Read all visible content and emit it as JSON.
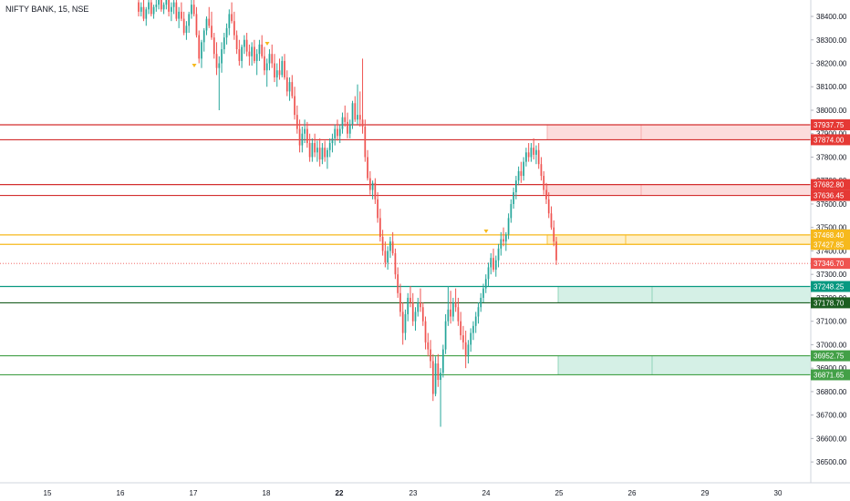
{
  "header": {
    "title": "NIFTY BANK, 15, NSE"
  },
  "colors": {
    "up": "#26a69a",
    "down": "#ef5350",
    "red_line": "#d32f2f",
    "orange_line": "#f6b91d",
    "teal_line": "#089981",
    "dark_green_line": "#1b5e20",
    "green_line": "#43a047",
    "red_zone": "#fcdcdc",
    "orange_zone": "#fff0c8",
    "green_zone": "#d5f0e6",
    "price_tag": "#ef5350"
  },
  "chart_data": {
    "type": "candlestick",
    "title": "NIFTY BANK, 15, NSE",
    "ylim": [
      36450,
      38470
    ],
    "y_ticks": [
      36500,
      36600,
      36700,
      36800,
      36900,
      37000,
      37100,
      37200,
      37300,
      37400,
      37500,
      37600,
      37700,
      37800,
      37900,
      38000,
      38100,
      38200,
      38300,
      38400
    ],
    "y_tick_labels": [
      "36500.00",
      "36600.00",
      "36700.00",
      "36800.00",
      "36900.00",
      "37000.00",
      "37100.00",
      "37200.00",
      "37300.00",
      "37400.00",
      "37500.00",
      "37600.00",
      "37700.00",
      "37800.00",
      "37900.00",
      "38000.00",
      "38100.00",
      "38200.00",
      "38300.00",
      "38400.00"
    ],
    "x_ticks": [
      "15",
      "16",
      "17",
      "18",
      "22",
      "23",
      "24",
      "25",
      "26",
      "29",
      "30"
    ],
    "horizontal_levels": [
      {
        "value": 37937.75,
        "label": "37937.75",
        "color": "red"
      },
      {
        "value": 37874.0,
        "label": "37874.00",
        "color": "red"
      },
      {
        "value": 37682.8,
        "label": "37682.80",
        "color": "red"
      },
      {
        "value": 37636.45,
        "label": "37636.45",
        "color": "red"
      },
      {
        "value": 37468.4,
        "label": "37468.40",
        "color": "orange"
      },
      {
        "value": 37427.85,
        "label": "37427.85",
        "color": "orange"
      },
      {
        "value": 37248.25,
        "label": "37248.25",
        "color": "teal"
      },
      {
        "value": 37178.7,
        "label": "37178.70",
        "color": "dark_green"
      },
      {
        "value": 36952.75,
        "label": "36952.75",
        "color": "green"
      },
      {
        "value": 36871.65,
        "label": "36871.65",
        "color": "green"
      }
    ],
    "zones": [
      {
        "top": 37937.75,
        "bottom": 37874.0,
        "color": "red",
        "start_day": "24-end"
      },
      {
        "top": 37682.8,
        "bottom": 37636.45,
        "color": "red",
        "start_day": "24-end"
      },
      {
        "top": 37468.4,
        "bottom": 37427.85,
        "color": "orange",
        "start_day": "24-end"
      },
      {
        "top": 37248.25,
        "bottom": 37178.7,
        "color": "green",
        "start_day": "25"
      },
      {
        "top": 36952.75,
        "bottom": 36871.65,
        "color": "green",
        "start_day": "25"
      }
    ],
    "last_price": {
      "value": 37346.7,
      "label": "37346.70"
    },
    "candles": [
      [
        38460,
        38480,
        38400,
        38420
      ],
      [
        38420,
        38460,
        38400,
        38440
      ],
      [
        38440,
        38470,
        38380,
        38390
      ],
      [
        38390,
        38440,
        38360,
        38430
      ],
      [
        38430,
        38480,
        38410,
        38460
      ],
      [
        38460,
        38480,
        38400,
        38410
      ],
      [
        38410,
        38450,
        38390,
        38440
      ],
      [
        38440,
        38470,
        38420,
        38450
      ],
      [
        38450,
        38480,
        38430,
        38470
      ],
      [
        38470,
        38480,
        38420,
        38430
      ],
      [
        38430,
        38460,
        38410,
        38450
      ],
      [
        38450,
        38480,
        38430,
        38470
      ],
      [
        38470,
        38480,
        38400,
        38420
      ],
      [
        38420,
        38460,
        38380,
        38440
      ],
      [
        38440,
        38470,
        38410,
        38460
      ],
      [
        38460,
        38480,
        38380,
        38390
      ],
      [
        38390,
        38440,
        38350,
        38420
      ],
      [
        38420,
        38460,
        38380,
        38390
      ],
      [
        38390,
        38420,
        38320,
        38330
      ],
      [
        38330,
        38380,
        38300,
        38360
      ],
      [
        38360,
        38420,
        38330,
        38410
      ],
      [
        38410,
        38470,
        38390,
        38450
      ],
      [
        38450,
        38480,
        38400,
        38410
      ],
      [
        38410,
        38440,
        38310,
        38320
      ],
      [
        38320,
        38340,
        38200,
        38220
      ],
      [
        38220,
        38300,
        38180,
        38290
      ],
      [
        38290,
        38350,
        38250,
        38340
      ],
      [
        38340,
        38400,
        38320,
        38390
      ],
      [
        38390,
        38440,
        38350,
        38360
      ],
      [
        38360,
        38420,
        38300,
        38310
      ],
      [
        38310,
        38330,
        38220,
        38240
      ],
      [
        38240,
        38290,
        38150,
        38180
      ],
      [
        38180,
        38230,
        38000,
        38200
      ],
      [
        38200,
        38290,
        38160,
        38260
      ],
      [
        38260,
        38330,
        38240,
        38310
      ],
      [
        38310,
        38370,
        38280,
        38350
      ],
      [
        38350,
        38430,
        38320,
        38410
      ],
      [
        38410,
        38460,
        38370,
        38380
      ],
      [
        38380,
        38420,
        38300,
        38320
      ],
      [
        38320,
        38340,
        38240,
        38260
      ],
      [
        38260,
        38300,
        38190,
        38210
      ],
      [
        38210,
        38280,
        38180,
        38270
      ],
      [
        38270,
        38320,
        38240,
        38300
      ],
      [
        38300,
        38330,
        38230,
        38250
      ],
      [
        38250,
        38280,
        38190,
        38230
      ],
      [
        38230,
        38290,
        38190,
        38270
      ],
      [
        38270,
        38300,
        38200,
        38210
      ],
      [
        38210,
        38260,
        38150,
        38240
      ],
      [
        38240,
        38300,
        38210,
        38280
      ],
      [
        38280,
        38320,
        38220,
        38230
      ],
      [
        38230,
        38270,
        38150,
        38170
      ],
      [
        38170,
        38220,
        38100,
        38200
      ],
      [
        38200,
        38260,
        38170,
        38240
      ],
      [
        38240,
        38280,
        38180,
        38200
      ],
      [
        38200,
        38240,
        38120,
        38140
      ],
      [
        38140,
        38200,
        38100,
        38170
      ],
      [
        38170,
        38220,
        38130,
        38150
      ],
      [
        38150,
        38230,
        38140,
        38210
      ],
      [
        38210,
        38240,
        38130,
        38140
      ],
      [
        38140,
        38170,
        38060,
        38080
      ],
      [
        38080,
        38140,
        38040,
        38120
      ],
      [
        38120,
        38150,
        38050,
        38060
      ],
      [
        38060,
        38100,
        37960,
        37980
      ],
      [
        37980,
        38020,
        37900,
        37920
      ],
      [
        37920,
        37960,
        37820,
        37850
      ],
      [
        37850,
        37930,
        37820,
        37900
      ],
      [
        37900,
        37960,
        37860,
        37920
      ],
      [
        37920,
        37950,
        37840,
        37860
      ],
      [
        37860,
        37900,
        37780,
        37800
      ],
      [
        37800,
        37880,
        37780,
        37860
      ],
      [
        37860,
        37900,
        37800,
        37820
      ],
      [
        37820,
        37870,
        37780,
        37840
      ],
      [
        37840,
        37880,
        37760,
        37790
      ],
      [
        37790,
        37860,
        37770,
        37840
      ],
      [
        37840,
        37870,
        37780,
        37800
      ],
      [
        37800,
        37840,
        37750,
        37830
      ],
      [
        37830,
        37880,
        37800,
        37860
      ],
      [
        37860,
        37900,
        37820,
        37880
      ],
      [
        37880,
        37940,
        37850,
        37920
      ],
      [
        37920,
        37960,
        37870,
        37890
      ],
      [
        37890,
        37940,
        37860,
        37920
      ],
      [
        37920,
        37990,
        37900,
        37970
      ],
      [
        37970,
        38020,
        37930,
        37950
      ],
      [
        37950,
        37990,
        37880,
        37900
      ],
      [
        37900,
        37960,
        37880,
        37940
      ],
      [
        37940,
        38040,
        37920,
        38030
      ],
      [
        38030,
        38060,
        37950,
        37960
      ],
      [
        37960,
        38110,
        37940,
        37980
      ],
      [
        37980,
        38080,
        37930,
        37960
      ],
      [
        37960,
        38220,
        37900,
        37930
      ],
      [
        37930,
        37960,
        37780,
        37800
      ],
      [
        37800,
        37830,
        37700,
        37710
      ],
      [
        37710,
        37740,
        37640,
        37660
      ],
      [
        37660,
        37700,
        37620,
        37690
      ],
      [
        37690,
        37710,
        37600,
        37620
      ],
      [
        37620,
        37650,
        37520,
        37540
      ],
      [
        37540,
        37580,
        37440,
        37460
      ],
      [
        37460,
        37490,
        37380,
        37400
      ],
      [
        37400,
        37440,
        37330,
        37350
      ],
      [
        37350,
        37420,
        37320,
        37400
      ],
      [
        37400,
        37460,
        37370,
        37440
      ],
      [
        37440,
        37480,
        37380,
        37390
      ],
      [
        37390,
        37410,
        37280,
        37300
      ],
      [
        37300,
        37330,
        37200,
        37220
      ],
      [
        37220,
        37260,
        37120,
        37140
      ],
      [
        37140,
        37180,
        37000,
        37050
      ],
      [
        37050,
        37150,
        37020,
        37130
      ],
      [
        37130,
        37220,
        37100,
        37200
      ],
      [
        37200,
        37250,
        37160,
        37180
      ],
      [
        37180,
        37220,
        37080,
        37100
      ],
      [
        37100,
        37160,
        37060,
        37140
      ],
      [
        37140,
        37200,
        37120,
        37180
      ],
      [
        37180,
        37240,
        37140,
        37160
      ],
      [
        37160,
        37180,
        37080,
        37100
      ],
      [
        37100,
        37120,
        36980,
        37010
      ],
      [
        37010,
        37050,
        36950,
        36980
      ],
      [
        36980,
        37020,
        36900,
        36930
      ],
      [
        36930,
        36960,
        36760,
        36790
      ],
      [
        36790,
        36950,
        36780,
        36920
      ],
      [
        36920,
        36960,
        36820,
        36850
      ],
      [
        36850,
        36900,
        36650,
        36880
      ],
      [
        36880,
        37000,
        36860,
        36980
      ],
      [
        36980,
        37130,
        36960,
        37100
      ],
      [
        37100,
        37250,
        37080,
        37150
      ],
      [
        37150,
        37230,
        37090,
        37120
      ],
      [
        37120,
        37200,
        37100,
        37180
      ],
      [
        37180,
        37240,
        37140,
        37160
      ],
      [
        37160,
        37200,
        37080,
        37100
      ],
      [
        37100,
        37140,
        37020,
        37040
      ],
      [
        37040,
        37080,
        36980,
        37010
      ],
      [
        37010,
        37060,
        36900,
        36950
      ],
      [
        36950,
        37020,
        36920,
        37000
      ],
      [
        37000,
        37070,
        36970,
        37050
      ],
      [
        37050,
        37100,
        37020,
        37080
      ],
      [
        37080,
        37140,
        37050,
        37120
      ],
      [
        37120,
        37180,
        37090,
        37160
      ],
      [
        37160,
        37220,
        37140,
        37200
      ],
      [
        37200,
        37260,
        37180,
        37240
      ],
      [
        37240,
        37300,
        37220,
        37280
      ],
      [
        37280,
        37350,
        37250,
        37330
      ],
      [
        37330,
        37390,
        37300,
        37370
      ],
      [
        37370,
        37410,
        37310,
        37320
      ],
      [
        37320,
        37380,
        37290,
        37360
      ],
      [
        37360,
        37430,
        37330,
        37410
      ],
      [
        37410,
        37480,
        37380,
        37450
      ],
      [
        37450,
        37500,
        37420,
        37440
      ],
      [
        37440,
        37480,
        37400,
        37470
      ],
      [
        37470,
        37560,
        37450,
        37540
      ],
      [
        37540,
        37620,
        37520,
        37600
      ],
      [
        37600,
        37670,
        37580,
        37650
      ],
      [
        37650,
        37720,
        37620,
        37700
      ],
      [
        37700,
        37760,
        37680,
        37740
      ],
      [
        37740,
        37780,
        37690,
        37720
      ],
      [
        37720,
        37800,
        37700,
        37780
      ],
      [
        37780,
        37840,
        37760,
        37820
      ],
      [
        37820,
        37860,
        37780,
        37800
      ],
      [
        37800,
        37860,
        37780,
        37840
      ],
      [
        37840,
        37880,
        37790,
        37810
      ],
      [
        37810,
        37850,
        37770,
        37830
      ],
      [
        37830,
        37860,
        37750,
        37770
      ],
      [
        37770,
        37800,
        37700,
        37720
      ],
      [
        37720,
        37740,
        37640,
        37660
      ],
      [
        37660,
        37690,
        37600,
        37620
      ],
      [
        37620,
        37650,
        37540,
        37560
      ],
      [
        37560,
        37590,
        37490,
        37500
      ],
      [
        37500,
        37530,
        37420,
        37440
      ],
      [
        37440,
        37460,
        37340,
        37360
      ]
    ]
  }
}
